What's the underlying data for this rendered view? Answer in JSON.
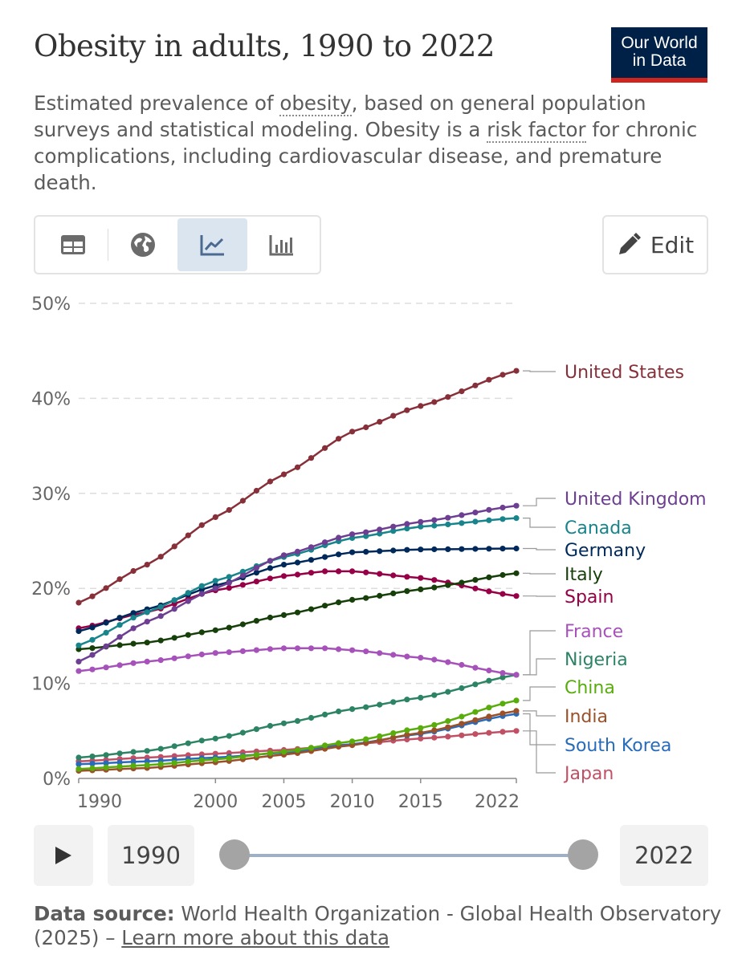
{
  "header": {
    "title": "Obesity in adults, 1990 to 2022",
    "logo_line1": "Our World",
    "logo_line2": "in Data",
    "subtitle_part1": "Estimated prevalence of ",
    "subtitle_link1": "obesity",
    "subtitle_part2": ", based on general population surveys and statistical modeling. Obesity is a ",
    "subtitle_link2": "risk factor",
    "subtitle_part3": " for chronic complications, including cardiovascular disease, and premature death."
  },
  "toolbar": {
    "tabs": [
      {
        "name": "table",
        "icon": "table-icon"
      },
      {
        "name": "map",
        "icon": "globe-icon"
      },
      {
        "name": "chart",
        "icon": "line-chart-icon",
        "active": true
      },
      {
        "name": "bar",
        "icon": "bar-chart-icon"
      }
    ],
    "edit_label": "Edit"
  },
  "timeline": {
    "start_year": "1990",
    "end_year": "2022"
  },
  "source": {
    "label": "Data source:",
    "text": " World Health Organization - Global Health Observatory (2025) – ",
    "link": "Learn more about this data"
  },
  "chart_data": {
    "type": "line",
    "title": "Obesity in adults, 1990 to 2022",
    "xlabel": "",
    "ylabel": "",
    "xlim": [
      1990,
      2022
    ],
    "ylim": [
      0,
      50
    ],
    "y_ticks": [
      0,
      10,
      20,
      30,
      40,
      50
    ],
    "y_tick_labels": [
      "0%",
      "10%",
      "20%",
      "30%",
      "40%",
      "50%"
    ],
    "x_ticks": [
      1990,
      2000,
      2005,
      2010,
      2015,
      2022
    ],
    "x_tick_labels": [
      "1990",
      "2000",
      "2005",
      "2010",
      "2015",
      "2022"
    ],
    "grid": "horizontal dashed",
    "series": [
      {
        "name": "United States",
        "color": "#883039",
        "keyframes": [
          [
            1990,
            18.5
          ],
          [
            1995,
            22.5
          ],
          [
            2000,
            27.5
          ],
          [
            2005,
            32.0
          ],
          [
            2010,
            36.5
          ],
          [
            2015,
            39.2
          ],
          [
            2022,
            42.9
          ]
        ]
      },
      {
        "name": "United Kingdom",
        "color": "#6d3e91",
        "keyframes": [
          [
            1990,
            12.3
          ],
          [
            1995,
            16.5
          ],
          [
            2000,
            20.0
          ],
          [
            2005,
            23.5
          ],
          [
            2010,
            25.7
          ],
          [
            2015,
            27.0
          ],
          [
            2022,
            28.7
          ]
        ]
      },
      {
        "name": "Canada",
        "color": "#18848c",
        "keyframes": [
          [
            1990,
            14.0
          ],
          [
            1995,
            17.5
          ],
          [
            2000,
            20.8
          ],
          [
            2005,
            23.3
          ],
          [
            2010,
            25.3
          ],
          [
            2015,
            26.5
          ],
          [
            2022,
            27.4
          ]
        ]
      },
      {
        "name": "Germany",
        "color": "#00295b",
        "keyframes": [
          [
            1990,
            15.5
          ],
          [
            1995,
            17.8
          ],
          [
            2000,
            20.3
          ],
          [
            2005,
            22.5
          ],
          [
            2010,
            23.8
          ],
          [
            2015,
            24.1
          ],
          [
            2022,
            24.2
          ]
        ]
      },
      {
        "name": "Italy",
        "color": "#173f0a",
        "keyframes": [
          [
            1990,
            13.6
          ],
          [
            1995,
            14.3
          ],
          [
            2000,
            15.6
          ],
          [
            2005,
            17.2
          ],
          [
            2010,
            18.8
          ],
          [
            2015,
            19.9
          ],
          [
            2022,
            21.6
          ]
        ]
      },
      {
        "name": "Spain",
        "color": "#970046",
        "keyframes": [
          [
            1990,
            15.8
          ],
          [
            1995,
            17.5
          ],
          [
            2000,
            19.8
          ],
          [
            2005,
            21.3
          ],
          [
            2008,
            21.8
          ],
          [
            2010,
            21.8
          ],
          [
            2015,
            21.1
          ],
          [
            2022,
            19.2
          ]
        ]
      },
      {
        "name": "France",
        "color": "#a652ba",
        "keyframes": [
          [
            1990,
            11.3
          ],
          [
            1995,
            12.3
          ],
          [
            2000,
            13.2
          ],
          [
            2005,
            13.7
          ],
          [
            2008,
            13.7
          ],
          [
            2010,
            13.5
          ],
          [
            2015,
            12.7
          ],
          [
            2022,
            10.9
          ]
        ]
      },
      {
        "name": "Nigeria",
        "color": "#2c8465",
        "keyframes": [
          [
            1990,
            2.2
          ],
          [
            1995,
            2.9
          ],
          [
            2000,
            4.2
          ],
          [
            2005,
            5.8
          ],
          [
            2010,
            7.3
          ],
          [
            2015,
            8.5
          ],
          [
            2022,
            10.9
          ]
        ]
      },
      {
        "name": "China",
        "color": "#58ac0c",
        "keyframes": [
          [
            1990,
            1.0
          ],
          [
            1995,
            1.4
          ],
          [
            2000,
            2.0
          ],
          [
            2005,
            2.8
          ],
          [
            2010,
            3.9
          ],
          [
            2015,
            5.3
          ],
          [
            2022,
            8.2
          ]
        ]
      },
      {
        "name": "India",
        "color": "#9a5129",
        "keyframes": [
          [
            1990,
            0.8
          ],
          [
            1995,
            1.1
          ],
          [
            2000,
            1.7
          ],
          [
            2005,
            2.5
          ],
          [
            2010,
            3.5
          ],
          [
            2015,
            4.8
          ],
          [
            2022,
            7.1
          ]
        ]
      },
      {
        "name": "South Korea",
        "color": "#286bbb",
        "keyframes": [
          [
            1990,
            1.5
          ],
          [
            1995,
            1.8
          ],
          [
            2000,
            2.2
          ],
          [
            2005,
            2.7
          ],
          [
            2010,
            3.6
          ],
          [
            2015,
            4.7
          ],
          [
            2022,
            6.8
          ]
        ]
      },
      {
        "name": "Japan",
        "color": "#c15065",
        "keyframes": [
          [
            1990,
            1.8
          ],
          [
            1995,
            2.2
          ],
          [
            2000,
            2.6
          ],
          [
            2005,
            3.0
          ],
          [
            2010,
            3.6
          ],
          [
            2015,
            4.2
          ],
          [
            2022,
            5.0
          ]
        ]
      }
    ],
    "legend": "right, labels at line ends",
    "legend_colors": {
      "United States": "#883039",
      "United Kingdom": "#6d3e91",
      "Canada": "#18848c",
      "Germany": "#00295b",
      "Italy": "#173f0a",
      "Spain": "#970046",
      "France": "#a652ba",
      "Nigeria": "#2c8465",
      "China": "#58ac0c",
      "India": "#9a5129",
      "South Korea": "#286bbb",
      "Japan": "#c15065"
    }
  }
}
